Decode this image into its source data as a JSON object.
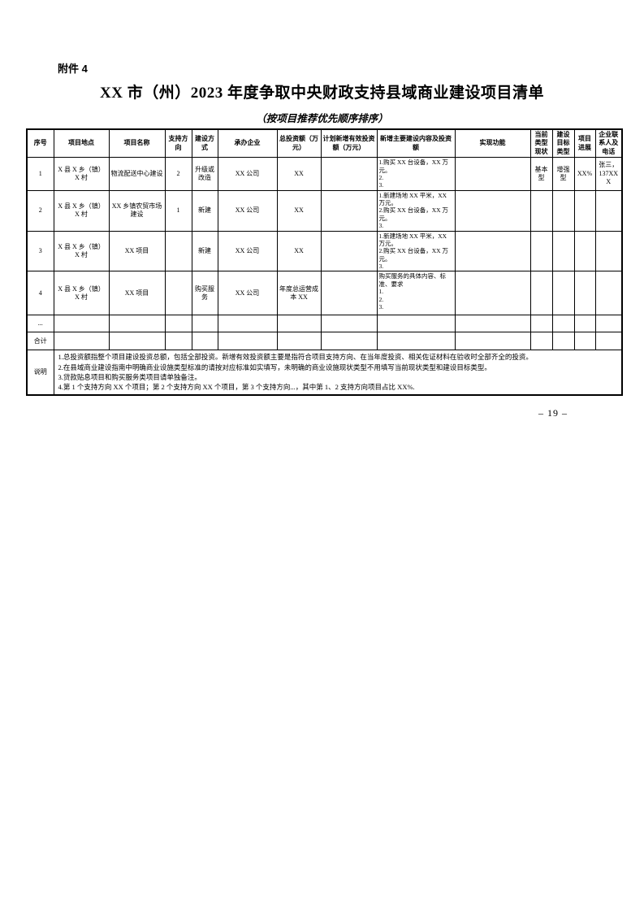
{
  "page": {
    "attachment_label": "附件 4",
    "title": "XX 市（州）2023 年度争取中央财政支持县域商业建设项目清单",
    "subtitle": "（按项目推荐优先顺序排序）",
    "page_number": "– 19 –"
  },
  "table": {
    "headers": [
      "序号",
      "项目地点",
      "项目名称",
      "支持方向",
      "建设方式",
      "承办企业",
      "总投资额（万元）",
      "计划新增有效投资额（万元）",
      "新增主要建设内容及投资额",
      "实现功能",
      "当前类型现状",
      "建设目标类型",
      "项目进展",
      "企业联系人及电话"
    ],
    "rows": [
      {
        "seq": "1",
        "location": "X 县 X 乡（镇）X 村",
        "name": "物流配送中心建设",
        "support_direction": "2",
        "build_mode": "升级或改造",
        "enterprise": "XX 公司",
        "total_investment": "XX",
        "planned_new_investment": "",
        "content": "1.购买 XX 台设备，XX 万元。\n2.\n3.",
        "realized_function": "",
        "current_type": "基本型",
        "target_type": "增强型",
        "progress": "XX%",
        "contact": "张三，137XXX"
      },
      {
        "seq": "2",
        "location": "X 县 X 乡（镇）X 村",
        "name": "XX 乡镇农贸市场建设",
        "support_direction": "1",
        "build_mode": "新建",
        "enterprise": "XX 公司",
        "total_investment": "XX",
        "planned_new_investment": "",
        "content": "1.新建场地 XX 平米，XX 万元。\n2.购买 XX 台设备，XX 万元。\n3.",
        "realized_function": "",
        "current_type": "",
        "target_type": "",
        "progress": "",
        "contact": ""
      },
      {
        "seq": "3",
        "location": "X 县 X 乡（镇）X 村",
        "name": "XX 项目",
        "support_direction": "",
        "build_mode": "新建",
        "enterprise": "XX 公司",
        "total_investment": "XX",
        "planned_new_investment": "",
        "content": "1.新建场地 XX 平米，XX 万元。\n2.购买 XX 台设备，XX 万元。\n3.",
        "realized_function": "",
        "current_type": "",
        "target_type": "",
        "progress": "",
        "contact": ""
      },
      {
        "seq": "4",
        "location": "X 县 X 乡（镇）X 村",
        "name": "XX 项目",
        "support_direction": "",
        "build_mode": "购买服务",
        "enterprise": "XX 公司",
        "total_investment": "年度总运营成本 XX",
        "planned_new_investment": "",
        "content": "购买服务的具体内容、标准、要求\n1.\n2.\n3.",
        "realized_function": "",
        "current_type": "",
        "target_type": "",
        "progress": "",
        "contact": ""
      }
    ],
    "ellipsis_row_label": "...",
    "total_row_label": "合计",
    "notes_label": "说明",
    "notes": [
      "1.总投资额指整个项目建设投资总额，包括全部投资。新增有效投资额主要是指符合项目支持方向、在当年度投资、相关佐证材料在验收时全部齐全的投资。",
      "2.在县域商业建设指南中明确商业设施类型标准的请按对应标准如实填写，未明确的商业设施现状类型不用填写当前现状类型和建设目标类型。",
      "3.贷款贴息项目和购买服务类项目请单独备注。",
      "4.第 1 个支持方向 XX 个项目；第 2 个支持方向 XX 个项目，第 3 个支持方向...，其中第 1、2 支持方向项目占比 XX%."
    ]
  }
}
